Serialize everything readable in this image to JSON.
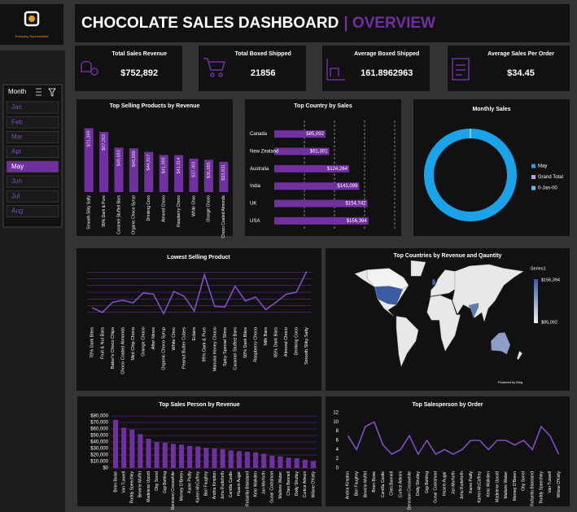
{
  "header": {
    "brand": "Everyday Supermarket",
    "title": "CHOCOLATE SALES DASHBOARD",
    "title_accent": "| OVERVIEW"
  },
  "slicer": {
    "title": "Month",
    "items": [
      "Jan",
      "Feb",
      "Mar",
      "Apr",
      "May",
      "Jun",
      "Jul",
      "Aug"
    ],
    "selected": "May"
  },
  "kpis": [
    {
      "label": "Total Sales Revenue",
      "value": "$752,892"
    },
    {
      "label": "Total Boxed Shipped",
      "value": "21856"
    },
    {
      "label": "Average Boxed Shipped",
      "value": "161.8962963"
    },
    {
      "label": "Average Sales Per Order",
      "value": "$34.45"
    }
  ],
  "chart_data": [
    {
      "type": "bar",
      "title": "Top Selling Products by Revenue",
      "color": "#7030a0",
      "categories": [
        "Smooth Silky Salty",
        "99% Dark & Pure",
        "Caramel Stuffed Bars",
        "Organic Choco Syrup",
        "Drinking Coco",
        "Almond Choco",
        "Raspberry Choco",
        "White Choc",
        "Orange Choco",
        "Choco Coated Almonds"
      ],
      "values": [
        71399,
        67263,
        49693,
        48888,
        44917,
        41398,
        41314,
        37401,
        36085,
        33831
      ],
      "value_labels": [
        "$71,399",
        "$67,263",
        "$49,693",
        "$48,888",
        "$44,917",
        "$41,398",
        "$41,314",
        "$37,401",
        "$36,085",
        "$33,831"
      ],
      "ylim": [
        0,
        80000
      ]
    },
    {
      "type": "hbar",
      "title": "Top Country by Sales",
      "color": "#7030a0",
      "categories": [
        "Canada",
        "New Zealand",
        "Australia",
        "India",
        "UK",
        "USA"
      ],
      "values": [
        85092,
        91301,
        124264,
        141099,
        154742,
        156394
      ],
      "value_labels": [
        "$85,092",
        "$91,301",
        "$124,264",
        "$141,099",
        "$154,742",
        "$156,394"
      ],
      "xlim": [
        0,
        200000
      ],
      "xticks": [
        50000,
        100000,
        150000,
        200000
      ],
      "grid": true
    },
    {
      "type": "donut",
      "title": "Monthly Sales",
      "categories": [
        "May",
        "Grand Total",
        "0-Jan-00"
      ],
      "values": [
        100,
        0,
        0
      ],
      "colors": [
        "#1aa3e8",
        "#b4a7d6",
        "#5bc0f0"
      ]
    },
    {
      "type": "line",
      "title": "Lowest Selling Product",
      "color": "#7e4fc4",
      "categories": [
        "70% Dark Bites",
        "Fruit & Nut Bars",
        "Baker's Choco Chips",
        "Choco Coated Almonds",
        "Mint Chip Choco",
        "Orange Choco",
        "After Nines",
        "Organic Choco Syrup",
        "White Choc",
        "Peanut Butter Cubes",
        "Eclairs",
        "99% Dark & Pure",
        "Manuka Honey Choco",
        "Spicy Special Slims",
        "Caramel Stuffed Bars",
        "50% Dark Bites",
        "Raspberry Choco",
        "Milk Bars",
        "85% Dark Bars",
        "Almond Choco",
        "Drinking Coco",
        "Smooth Sliky Salty"
      ],
      "values": [
        17000,
        10000,
        25000,
        28000,
        24000,
        39000,
        37000,
        8000,
        41000,
        34000,
        12000,
        66000,
        19000,
        18000,
        49000,
        27000,
        33000,
        14000,
        25000,
        37000,
        40000,
        71000
      ],
      "ylim": [
        0,
        80000
      ],
      "yticks": [
        10000,
        20000,
        30000,
        40000,
        50000,
        60000,
        70000
      ],
      "grid": true,
      "show_tick_labels": false
    },
    {
      "type": "map",
      "title": "Top Countries by Revenue and Qauntity",
      "legend_title": "Series1",
      "credit": "Powered by Bing",
      "regions": [
        "USA",
        "UK",
        "India",
        "Australia",
        "New Zealand",
        "Canada"
      ],
      "values": [
        156394,
        154742,
        141099,
        124264,
        91301,
        85092
      ],
      "color_range": [
        85092,
        156394
      ],
      "color_range_labels": [
        "$85,092",
        "$156,394"
      ],
      "colors": [
        "#f2f2f2",
        "#3b5ba5"
      ]
    },
    {
      "type": "bar",
      "title": "Top Sales Person by Revenue",
      "color": "#7030a0",
      "categories": [
        "Brien Boise",
        "Van Tuxwell",
        "Roddy Speechley",
        "Beverie Moffet",
        "Madelene Upcott",
        "Oby Sorrel",
        "Gigi Bohling",
        "Dennison Crosswhite",
        "Marney O'Breen",
        "Kaine Padly",
        "Karlen McCaffrey",
        "Barr Faughny",
        "Andria Kimpton",
        "Jehu Rudeforth",
        "Camilla Castle",
        "Husein Augar",
        "Rafaelita Blaksland",
        "Kelci Walkden",
        "Jan Morforth",
        "Gunar Cockshoot",
        "Mallorie Waber",
        "Ches Bonnell",
        "Dotty Strutley",
        "Curtice Advani",
        "Wilone O'Kelly"
      ],
      "values": [
        74000,
        62000,
        59000,
        52000,
        45000,
        40000,
        39000,
        37000,
        36000,
        34000,
        33000,
        31000,
        30000,
        29000,
        27000,
        26000,
        25000,
        24000,
        22000,
        19000,
        18000,
        16000,
        15000,
        13000,
        11000
      ],
      "ylim": [
        0,
        80000
      ],
      "yticks": [
        {
          "value": 0,
          "label": "$0"
        },
        {
          "value": 10000,
          "label": "$10,000"
        },
        {
          "value": 20000,
          "label": "$20,000"
        },
        {
          "value": 30000,
          "label": "$30,000"
        },
        {
          "value": 40000,
          "label": "$40,000"
        },
        {
          "value": 50000,
          "label": "$50,000"
        },
        {
          "value": 60000,
          "label": "$60,000"
        },
        {
          "value": 70000,
          "label": "$70,000"
        },
        {
          "value": 80000,
          "label": "$80,000"
        }
      ],
      "grid": true
    },
    {
      "type": "line",
      "title": "Top Salesperson by Order",
      "color": "#7e4fc4",
      "categories": [
        "Andria Kimpton",
        "Barr Faughny",
        "Beverie Moffet",
        "Brien Boise",
        "Camilla Castle",
        "Ches Bonnell",
        "Curtice Advani",
        "Dennison Crosswhite",
        "Dotty Strutley",
        "Gigi Bohling",
        "Gunar Cockshoot",
        "Husein Augar",
        "Jan Morforth",
        "Jehu Rudeforth",
        "Kaine Padly",
        "Karlen McCaffrey",
        "Kelci Walkden",
        "Madelene Upcott",
        "Mallorie Waber",
        "Marney O'Breen",
        "Oby Sorrel",
        "Rafaelita Blaksland",
        "Roddy Speechley",
        "Van Tuxwell",
        "Wilone O'Kelly"
      ],
      "values": [
        7,
        4,
        9,
        10,
        5,
        3,
        4,
        7,
        3,
        6,
        3,
        4,
        3,
        4,
        6,
        6,
        4,
        6,
        6,
        5,
        6,
        4,
        9,
        7,
        3
      ],
      "ylim": [
        0,
        12
      ],
      "yticks": [
        0,
        2,
        4,
        6,
        8,
        10,
        12
      ],
      "grid": false
    }
  ]
}
